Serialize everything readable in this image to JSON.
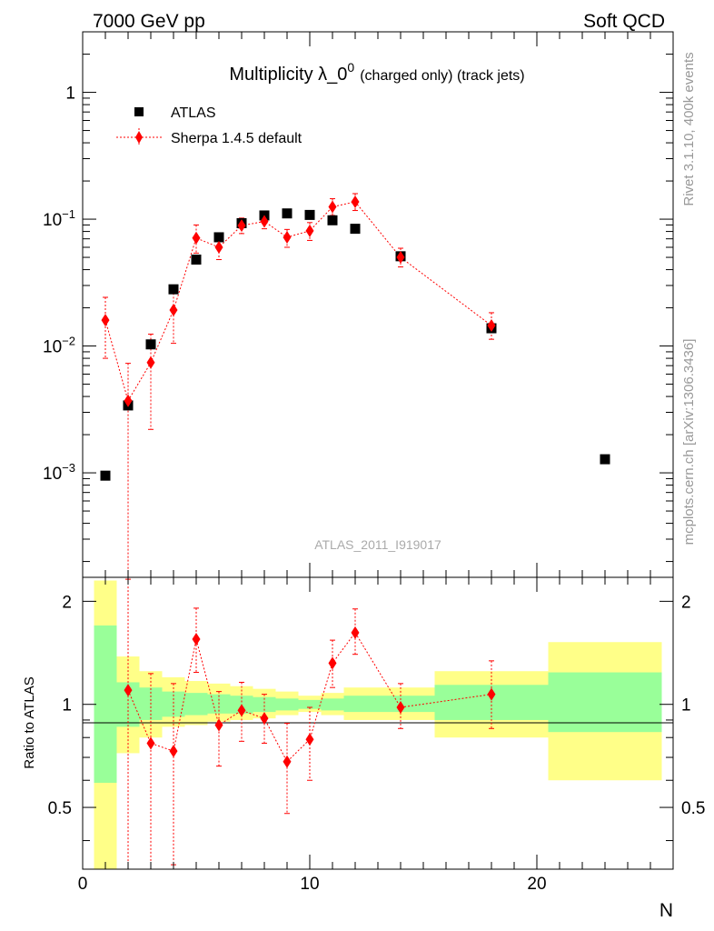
{
  "header": {
    "left": "7000 GeV pp",
    "right": "Soft QCD"
  },
  "side_labels": {
    "rivet": "Rivet 3.1.10,  400k events",
    "mcplots": "mcplots.cern.ch [arXiv:1306.3436]"
  },
  "watermark": "ATLAS_2011_I919017",
  "colors": {
    "data": "#000000",
    "mc": "#ff0000",
    "band_inner": "#99ff99",
    "band_outer": "#ffff88"
  },
  "chart_data": [
    {
      "type": "scatter",
      "title_main": "Multiplicity λ_0",
      "title_sup": "0",
      "title_small": "(charged only) (track jets)",
      "yscale": "log",
      "ylim": [
        0.00015,
        3.0
      ],
      "xlim": [
        0,
        26
      ],
      "ytick_labels": [
        {
          "value": 1,
          "mant": "1",
          "exp": ""
        },
        {
          "value": 0.1,
          "mant": "10",
          "exp": "−1"
        },
        {
          "value": 0.01,
          "mant": "10",
          "exp": "−2"
        },
        {
          "value": 0.001,
          "mant": "10",
          "exp": "−3"
        }
      ],
      "legend": {
        "position": "top-left",
        "entries": [
          "ATLAS",
          "Sherpa 1.4.5 default"
        ]
      },
      "series": [
        {
          "name": "ATLAS",
          "marker": "square",
          "x": [
            1,
            2,
            3,
            4,
            5,
            6,
            7,
            8,
            9,
            10,
            11,
            12,
            14,
            18,
            23
          ],
          "y": [
            0.00095,
            0.0034,
            0.0103,
            0.028,
            0.048,
            0.072,
            0.093,
            0.107,
            0.111,
            0.108,
            0.098,
            0.084,
            0.051,
            0.0138,
            0.00128
          ]
        },
        {
          "name": "Sherpa 1.4.5 default",
          "marker": "diamond",
          "x": [
            1,
            2,
            3,
            4,
            5,
            6,
            7,
            8,
            9,
            10,
            11,
            12,
            14,
            18
          ],
          "y": [
            0.016,
            0.0037,
            0.0074,
            0.0192,
            0.071,
            0.06,
            0.089,
            0.096,
            0.072,
            0.081,
            0.125,
            0.137,
            0.05,
            0.0145
          ],
          "err_lo": [
            0.008,
            0.0036,
            0.0052,
            0.0087,
            0.017,
            0.012,
            0.012,
            0.012,
            0.012,
            0.013,
            0.018,
            0.02,
            0.008,
            0.0032
          ],
          "err_hi": [
            0.0082,
            0.0036,
            0.005,
            0.0087,
            0.019,
            0.012,
            0.013,
            0.013,
            0.011,
            0.013,
            0.02,
            0.022,
            0.009,
            0.0038
          ]
        }
      ]
    },
    {
      "type": "scatter",
      "ylabel": "Ratio to ATLAS",
      "xlabel": "N",
      "yscale": "log",
      "ylim": [
        0.33,
        2.35
      ],
      "xlim": [
        0,
        26
      ],
      "ytick_labels": [
        {
          "value": 0.5,
          "label": "0.5"
        },
        {
          "value": 1,
          "label": "1"
        },
        {
          "value": 2,
          "label": "2"
        }
      ],
      "xtick_labels": [
        {
          "value": 0,
          "label": "0"
        },
        {
          "value": 10,
          "label": "10"
        },
        {
          "value": 20,
          "label": "20"
        }
      ],
      "bands": [
        {
          "x0": 0.5,
          "x1": 1.5,
          "inner": [
            0.59,
            1.7
          ],
          "outer": [
            0.3,
            2.3
          ]
        },
        {
          "x0": 1.5,
          "x1": 2.5,
          "inner": [
            0.86,
            1.16
          ],
          "outer": [
            0.72,
            1.38
          ]
        },
        {
          "x0": 2.5,
          "x1": 3.5,
          "inner": [
            0.9,
            1.12
          ],
          "outer": [
            0.8,
            1.25
          ]
        },
        {
          "x0": 3.5,
          "x1": 4.5,
          "inner": [
            0.92,
            1.09
          ],
          "outer": [
            0.86,
            1.2
          ]
        },
        {
          "x0": 4.5,
          "x1": 5.5,
          "inner": [
            0.93,
            1.08
          ],
          "outer": [
            0.87,
            1.17
          ]
        },
        {
          "x0": 5.5,
          "x1": 6.5,
          "inner": [
            0.94,
            1.07
          ],
          "outer": [
            0.89,
            1.15
          ]
        },
        {
          "x0": 6.5,
          "x1": 7.5,
          "inner": [
            0.94,
            1.06
          ],
          "outer": [
            0.9,
            1.13
          ]
        },
        {
          "x0": 7.5,
          "x1": 8.5,
          "inner": [
            0.95,
            1.05
          ],
          "outer": [
            0.91,
            1.11
          ]
        },
        {
          "x0": 8.5,
          "x1": 9.5,
          "inner": [
            0.96,
            1.04
          ],
          "outer": [
            0.93,
            1.09
          ]
        },
        {
          "x0": 9.5,
          "x1": 10.5,
          "inner": [
            0.97,
            1.03
          ],
          "outer": [
            0.95,
            1.06
          ]
        },
        {
          "x0": 10.5,
          "x1": 11.5,
          "inner": [
            0.96,
            1.04
          ],
          "outer": [
            0.93,
            1.08
          ]
        },
        {
          "x0": 11.5,
          "x1": 13.5,
          "inner": [
            0.95,
            1.06
          ],
          "outer": [
            0.9,
            1.12
          ]
        },
        {
          "x0": 13.5,
          "x1": 15.5,
          "inner": [
            0.95,
            1.06
          ],
          "outer": [
            0.9,
            1.12
          ]
        },
        {
          "x0": 15.5,
          "x1": 20.5,
          "inner": [
            0.9,
            1.14
          ],
          "outer": [
            0.8,
            1.25
          ]
        },
        {
          "x0": 20.5,
          "x1": 25.5,
          "inner": [
            0.83,
            1.24
          ],
          "outer": [
            0.6,
            1.52
          ]
        }
      ],
      "series": [
        {
          "name": "Sherpa 1.4.5 default / ATLAS",
          "marker": "diamond",
          "x": [
            2,
            3,
            4,
            5,
            6,
            7,
            8,
            9,
            10,
            11,
            12,
            14,
            18
          ],
          "y": [
            1.1,
            0.77,
            0.73,
            1.55,
            0.87,
            0.96,
            0.91,
            0.68,
            0.79,
            1.32,
            1.62,
            0.98,
            1.07
          ],
          "err_lo": [
            1.06,
            0.44,
            0.39,
            0.31,
            0.21,
            0.18,
            0.14,
            0.2,
            0.19,
            0.2,
            0.22,
            0.13,
            0.22
          ],
          "err_hi": [
            1.22,
            0.46,
            0.42,
            0.36,
            0.22,
            0.2,
            0.16,
            0.2,
            0.19,
            0.22,
            0.28,
            0.17,
            0.27
          ]
        }
      ]
    }
  ]
}
